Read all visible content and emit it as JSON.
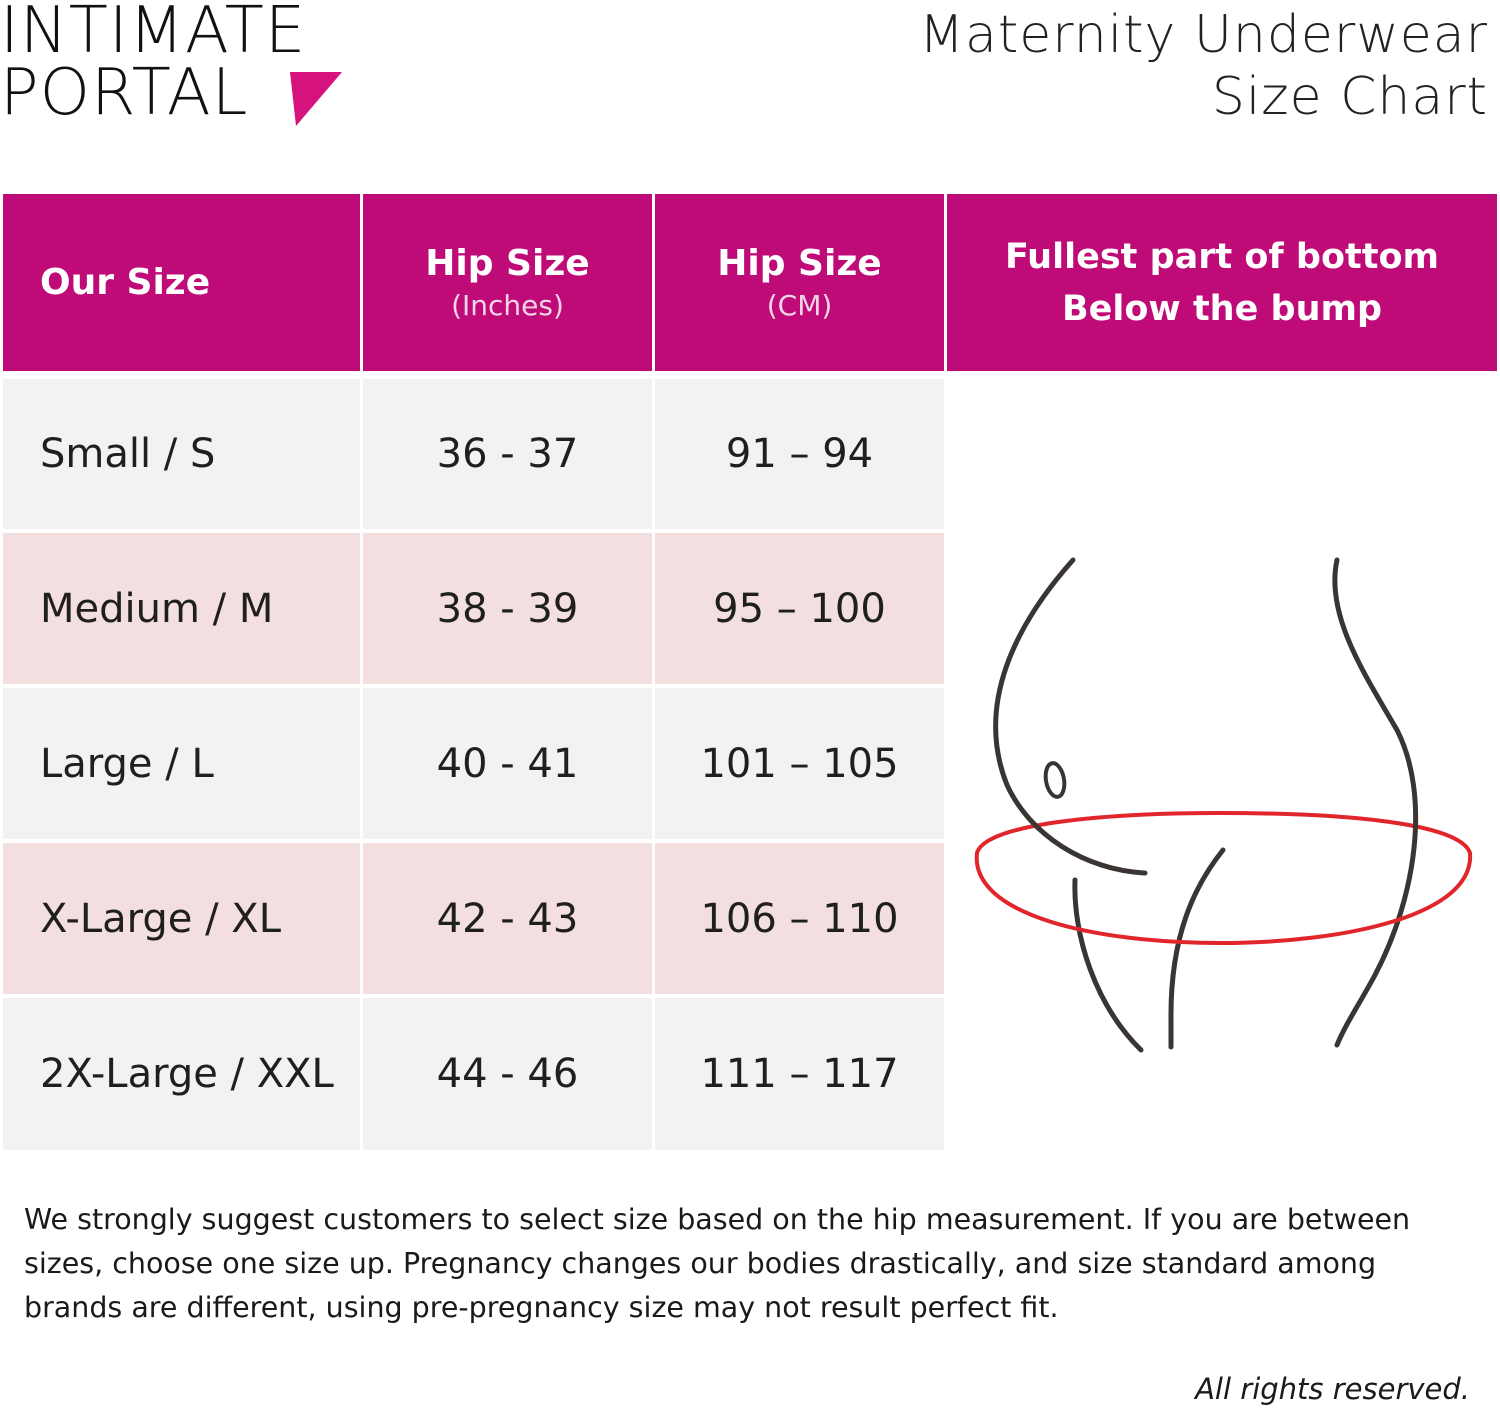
{
  "brand": {
    "line1": "INTIMATE",
    "line2": "PORTAL",
    "accent_color": "#d6127f"
  },
  "title": {
    "line1": "Maternity Underwear",
    "line2": "Size Chart"
  },
  "table": {
    "headers": [
      {
        "main": "Our Size",
        "sub": ""
      },
      {
        "main": "Hip Size",
        "sub": "(Inches)"
      },
      {
        "main": "Hip Size",
        "sub": "(CM)"
      },
      {
        "main": "Fullest part of bottom",
        "sub": "Below the bump"
      }
    ],
    "rows": [
      {
        "size": "Small / S",
        "inches": "36 - 37",
        "cm": "91 – 94"
      },
      {
        "size": "Medium / M",
        "inches": "38 - 39",
        "cm": "95 – 100"
      },
      {
        "size": "Large / L",
        "inches": "40 - 41",
        "cm": "101 – 105"
      },
      {
        "size": "X-Large / XL",
        "inches": "42 - 43",
        "cm": "106 – 110"
      },
      {
        "size": "2X-Large / XXL",
        "inches": "44 - 46",
        "cm": "111 – 117"
      }
    ],
    "header_color": "#be0b78",
    "row_colors": [
      "#f2f2f2",
      "#f3dee0"
    ]
  },
  "illustration": {
    "icon": "body-silhouette-icon",
    "measure_color": "#e0262b"
  },
  "note": "We strongly suggest customers to select size based on the hip measurement.  If you are between sizes, choose one size up.  Pregnancy changes our bodies drastically, and size standard among brands are different, using pre-pregnancy size may not result perfect fit.",
  "rights": "All rights reserved."
}
